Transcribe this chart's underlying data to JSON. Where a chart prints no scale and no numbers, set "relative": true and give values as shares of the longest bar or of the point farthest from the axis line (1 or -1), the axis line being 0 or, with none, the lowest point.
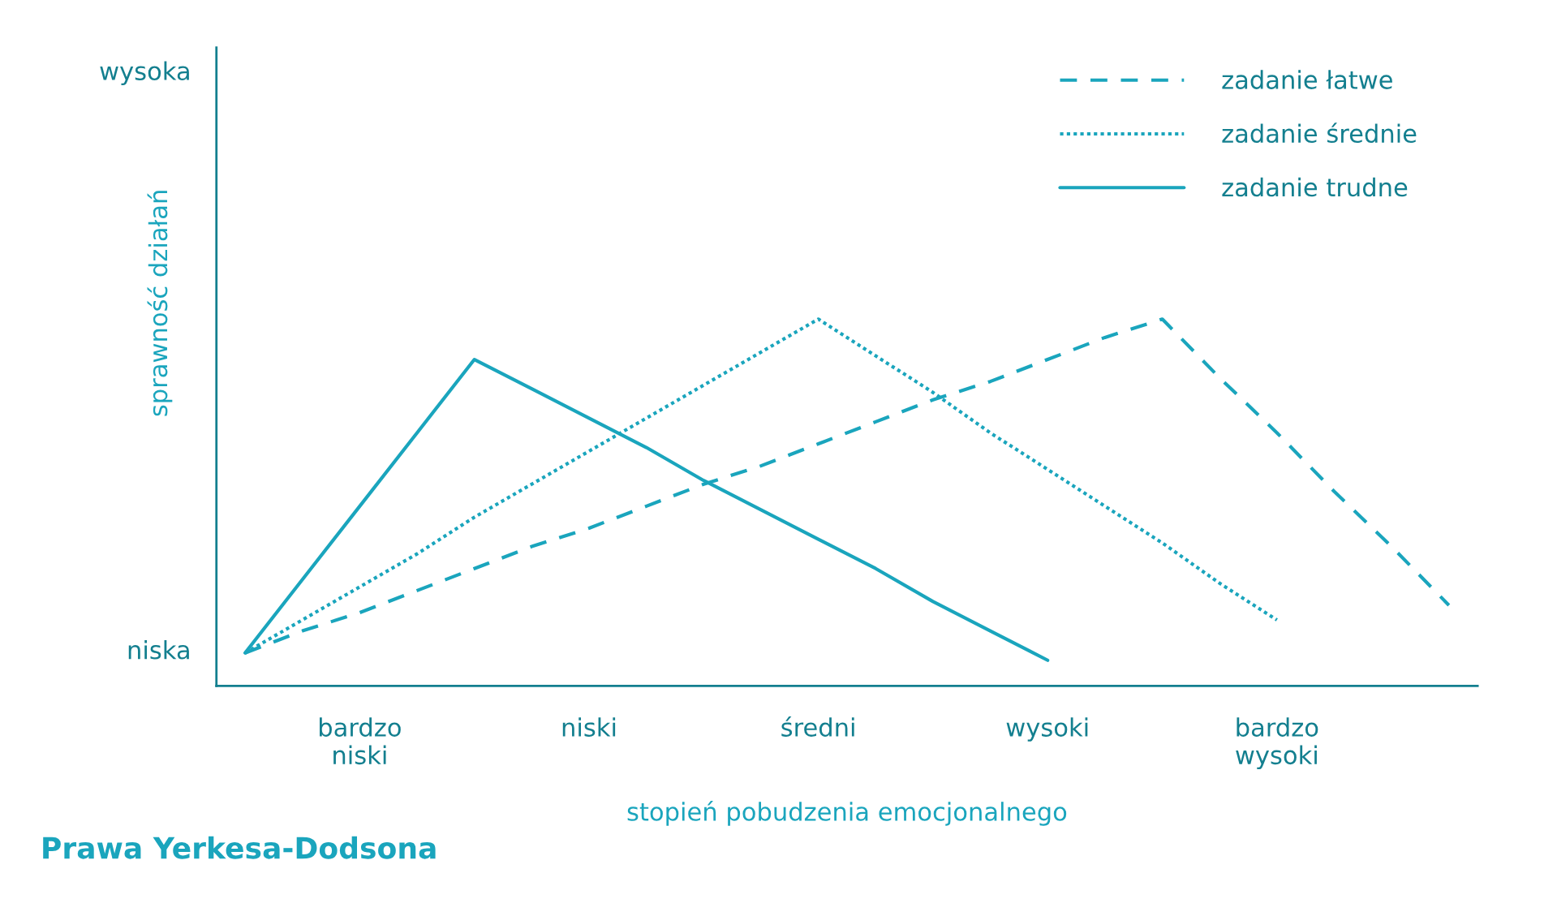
{
  "chart_data": {
    "type": "line",
    "title": "Prawa Yerkesa-Dodsona",
    "xlabel": "stopień pobudzenia emocjonalnego",
    "ylabel": "sprawność działań",
    "categories": [
      null,
      null,
      "bardzo\nniski",
      null,
      null,
      null,
      "niski",
      null,
      null,
      null,
      "średni",
      null,
      null,
      null,
      "wysoki",
      null,
      null,
      null,
      "bardzo\nwysoki",
      null,
      null,
      null
    ],
    "relative": true,
    "annotations": [
      "niska",
      "wysoka"
    ],
    "grid": false,
    "legend": "top right",
    "marker": "none",
    "series": [
      {
        "name": "zadanie łatwe",
        "color": "#1aa5bd",
        "line_style": "dashed",
        "values": [
          0.09,
          0.15,
          0.2,
          0.26,
          0.32,
          0.38,
          0.43,
          0.49,
          0.55,
          0.6,
          0.66,
          0.72,
          0.78,
          0.83,
          0.89,
          0.95,
          1.0,
          0.84,
          0.69,
          0.53,
          0.38,
          0.22
        ]
      },
      {
        "name": "zadanie średnie",
        "color": "#1aa5bd",
        "line_style": "dotted",
        "values": [
          0.09,
          0.18,
          0.27,
          0.36,
          0.46,
          0.55,
          0.64,
          0.73,
          0.82,
          0.91,
          1.0,
          0.9,
          0.8,
          0.69,
          0.59,
          0.49,
          0.39,
          0.28,
          0.18,
          null,
          null,
          null
        ]
      },
      {
        "name": "zadanie trudne",
        "color": "#1aa5bd",
        "line_style": "solid",
        "values": [
          0.09,
          0.29,
          0.49,
          0.69,
          0.89,
          0.81,
          0.73,
          0.65,
          0.56,
          0.48,
          0.4,
          0.32,
          0.23,
          0.15,
          0.07,
          null,
          null,
          null,
          null,
          null,
          null,
          null
        ]
      }
    ]
  }
}
